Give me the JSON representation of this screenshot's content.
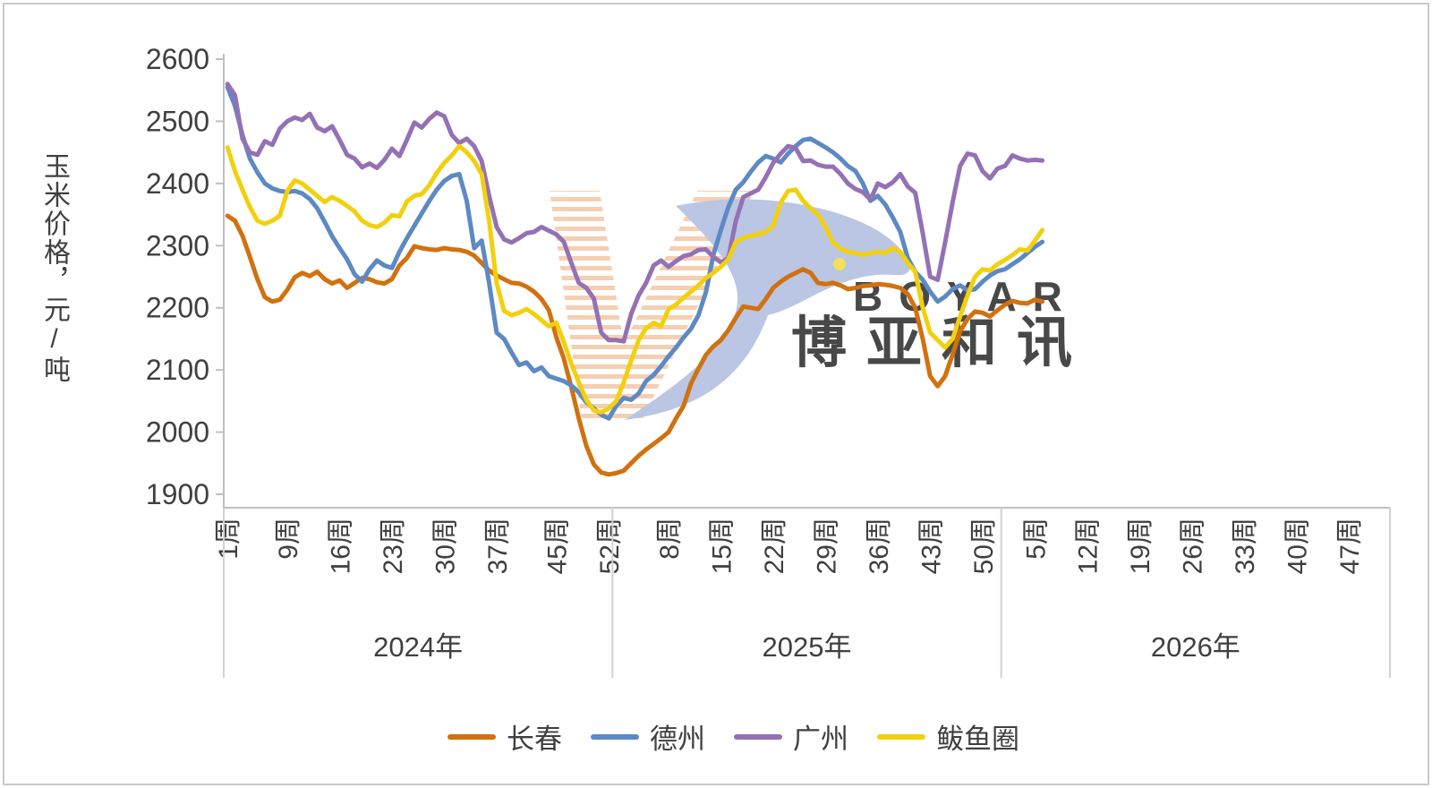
{
  "window": {
    "background": "#ffffff",
    "border_color": "#c9c9c9"
  },
  "y_axis": {
    "title": "玉米价格，元/吨",
    "tick_labels": [
      "2600",
      "2500",
      "2400",
      "2300",
      "2200",
      "2100",
      "2000",
      "1900"
    ],
    "min": 1900,
    "max": 2600,
    "line_color": "#bfbfbf",
    "text_color": "#3f3f3f"
  },
  "x_axis": {
    "week_suffix": "周",
    "year_suffix": "年",
    "years": [
      {
        "label": "2024年",
        "weeks_in_year": 52,
        "tick_weeks": [
          1,
          9,
          16,
          23,
          30,
          37,
          45,
          52
        ]
      },
      {
        "label": "2025年",
        "weeks_in_year": 52,
        "tick_weeks": [
          8,
          15,
          22,
          29,
          36,
          43,
          50
        ]
      },
      {
        "label": "2026年",
        "weeks_in_year": 52,
        "tick_weeks": [
          5,
          12,
          19,
          26,
          33,
          40,
          47
        ]
      }
    ],
    "separator_color": "#d2d2d2",
    "line_color": "#bfbfbf"
  },
  "legend": [
    {
      "label": "长春",
      "color": "#d1710f"
    },
    {
      "label": "德州",
      "color": "#5d89c4"
    },
    {
      "label": "广州",
      "color": "#9471b5"
    },
    {
      "label": "鲅鱼圈",
      "color": "#f3d00e"
    }
  ],
  "watermark": {
    "text_en": "BOYAR",
    "text_cn": "博亚和讯",
    "text_en_color": "#f6cba4",
    "text_cn_color": "#c5cee9",
    "bird_color": "#b7c3e3",
    "bird_eye_color": "#f3e04e",
    "hatch_color": "#f5cdae"
  },
  "chart_data": {
    "type": "line",
    "title": "",
    "xlabel": "",
    "ylabel": "玉米价格，元/吨",
    "ylim": [
      1900,
      2600
    ],
    "grid": false,
    "legend_position": "bottom",
    "x_unit": "week-of-year",
    "x_start": "2024年1周",
    "x_end": "2026年6周",
    "total_week_slots": 156,
    "n_points": 110,
    "series": [
      {
        "name": "长春",
        "color": "#d1710f",
        "values": [
          2348,
          2340,
          2316,
          2282,
          2246,
          2217,
          2210,
          2213,
          2229,
          2249,
          2256,
          2251,
          2258,
          2246,
          2239,
          2244,
          2232,
          2240,
          2248,
          2246,
          2241,
          2239,
          2246,
          2268,
          2280,
          2299,
          2296,
          2294,
          2293,
          2296,
          2294,
          2293,
          2290,
          2284,
          2272,
          2260,
          2252,
          2246,
          2240,
          2239,
          2234,
          2226,
          2214,
          2196,
          2152,
          2118,
          2072,
          2022,
          1978,
          1948,
          1935,
          1932,
          1934,
          1938,
          1950,
          1962,
          1972,
          1981,
          1990,
          2000,
          2022,
          2042,
          2078,
          2102,
          2124,
          2138,
          2148,
          2164,
          2184,
          2202,
          2200,
          2198,
          2214,
          2232,
          2242,
          2250,
          2256,
          2262,
          2256,
          2240,
          2238,
          2240,
          2236,
          2230,
          2232,
          2235,
          2236,
          2238,
          2237,
          2235,
          2232,
          2222,
          2200,
          2150,
          2090,
          2074,
          2090,
          2125,
          2162,
          2182,
          2194,
          2192,
          2186,
          2196,
          2205,
          2211,
          2208,
          2207,
          2213,
          2210
        ]
      },
      {
        "name": "德州",
        "color": "#5d89c4",
        "values": [
          2555,
          2525,
          2478,
          2440,
          2418,
          2400,
          2392,
          2388,
          2386,
          2388,
          2384,
          2375,
          2360,
          2338,
          2315,
          2296,
          2278,
          2254,
          2242,
          2262,
          2276,
          2268,
          2264,
          2290,
          2312,
          2332,
          2352,
          2372,
          2390,
          2404,
          2412,
          2415,
          2372,
          2296,
          2308,
          2240,
          2160,
          2150,
          2128,
          2108,
          2112,
          2098,
          2104,
          2090,
          2086,
          2082,
          2075,
          2064,
          2048,
          2038,
          2028,
          2022,
          2042,
          2055,
          2052,
          2062,
          2082,
          2092,
          2106,
          2122,
          2136,
          2152,
          2166,
          2188,
          2225,
          2285,
          2325,
          2362,
          2390,
          2402,
          2419,
          2434,
          2444,
          2440,
          2434,
          2448,
          2460,
          2470,
          2472,
          2465,
          2458,
          2450,
          2440,
          2428,
          2420,
          2400,
          2372,
          2380,
          2366,
          2345,
          2322,
          2280,
          2258,
          2245,
          2226,
          2210,
          2218,
          2230,
          2236,
          2228,
          2230,
          2242,
          2252,
          2259,
          2262,
          2270,
          2278,
          2288,
          2298,
          2306
        ]
      },
      {
        "name": "广州",
        "color": "#9471b5",
        "values": [
          2560,
          2542,
          2472,
          2450,
          2446,
          2468,
          2462,
          2488,
          2500,
          2506,
          2502,
          2512,
          2490,
          2484,
          2492,
          2470,
          2446,
          2440,
          2426,
          2432,
          2425,
          2438,
          2456,
          2444,
          2470,
          2498,
          2490,
          2504,
          2514,
          2508,
          2478,
          2465,
          2472,
          2460,
          2436,
          2380,
          2330,
          2310,
          2305,
          2312,
          2320,
          2322,
          2330,
          2324,
          2318,
          2306,
          2272,
          2240,
          2232,
          2215,
          2160,
          2148,
          2148,
          2146,
          2190,
          2220,
          2240,
          2268,
          2276,
          2266,
          2275,
          2283,
          2286,
          2293,
          2294,
          2282,
          2273,
          2280,
          2340,
          2378,
          2384,
          2390,
          2410,
          2433,
          2448,
          2460,
          2457,
          2436,
          2437,
          2430,
          2427,
          2427,
          2415,
          2400,
          2391,
          2386,
          2374,
          2400,
          2394,
          2402,
          2415,
          2395,
          2385,
          2320,
          2250,
          2245,
          2305,
          2370,
          2428,
          2448,
          2445,
          2420,
          2408,
          2424,
          2428,
          2445,
          2440,
          2437,
          2438,
          2437
        ]
      },
      {
        "name": "鲅鱼圈",
        "color": "#f3d00e",
        "values": [
          2458,
          2420,
          2390,
          2362,
          2340,
          2335,
          2340,
          2348,
          2388,
          2405,
          2400,
          2390,
          2380,
          2370,
          2378,
          2372,
          2364,
          2355,
          2340,
          2333,
          2330,
          2337,
          2349,
          2347,
          2371,
          2380,
          2383,
          2397,
          2417,
          2433,
          2445,
          2460,
          2450,
          2436,
          2415,
          2340,
          2240,
          2195,
          2188,
          2192,
          2198,
          2190,
          2180,
          2170,
          2176,
          2145,
          2110,
          2080,
          2052,
          2035,
          2032,
          2038,
          2050,
          2080,
          2115,
          2148,
          2167,
          2176,
          2170,
          2198,
          2205,
          2216,
          2226,
          2236,
          2248,
          2256,
          2266,
          2278,
          2306,
          2312,
          2316,
          2318,
          2322,
          2332,
          2369,
          2388,
          2390,
          2372,
          2360,
          2350,
          2330,
          2305,
          2295,
          2290,
          2288,
          2285,
          2288,
          2290,
          2288,
          2296,
          2290,
          2272,
          2258,
          2200,
          2160,
          2148,
          2136,
          2150,
          2186,
          2220,
          2250,
          2262,
          2260,
          2270,
          2277,
          2285,
          2294,
          2292,
          2308,
          2325
        ]
      }
    ]
  }
}
